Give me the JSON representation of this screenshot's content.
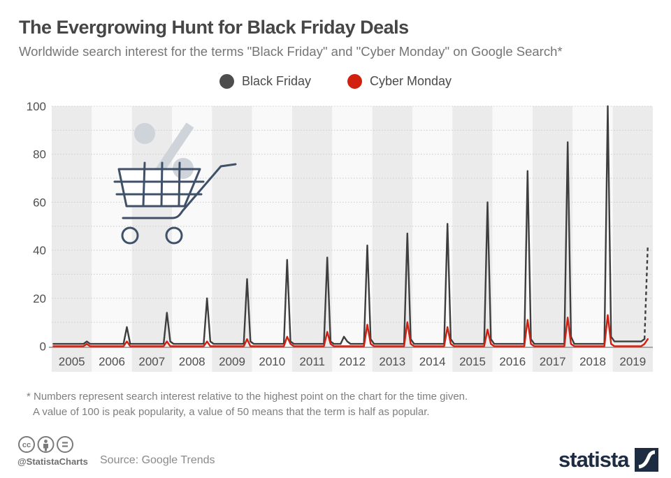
{
  "header": {
    "title": "The Evergrowing Hunt for Black Friday Deals",
    "subtitle": "Worldwide search interest for the terms \"Black Friday\" and \"Cyber Monday\" on Google Search*"
  },
  "legend": {
    "items": [
      {
        "label": "Black Friday",
        "color": "#4d4d4d"
      },
      {
        "label": "Cyber Monday",
        "color": "#d2200f"
      }
    ]
  },
  "chart_data": {
    "type": "line",
    "years": [
      "2005",
      "2006",
      "2007",
      "2008",
      "2009",
      "2010",
      "2011",
      "2012",
      "2013",
      "2014",
      "2015",
      "2016",
      "2017",
      "2018",
      "2019"
    ],
    "ylim": [
      0,
      100
    ],
    "yticks": [
      0,
      20,
      40,
      60,
      80,
      100
    ],
    "grid_step": 10,
    "band_colors": [
      "#ebebeb",
      "#f9f9f9"
    ],
    "grid_color": "#c9c9c9",
    "axis_color": "#a6a6a6",
    "series": [
      {
        "name": "Black Friday",
        "color": "#3e3e3e",
        "dashed_tail_points": 2,
        "monthly_by_year": [
          [
            1,
            1,
            1,
            1,
            1,
            1,
            1,
            1,
            1,
            1,
            2,
            1
          ],
          [
            1,
            1,
            1,
            1,
            1,
            1,
            1,
            1,
            1,
            1,
            8,
            1
          ],
          [
            1,
            1,
            1,
            1,
            1,
            1,
            1,
            1,
            1,
            1,
            14,
            2
          ],
          [
            1,
            1,
            1,
            1,
            1,
            1,
            1,
            1,
            1,
            1,
            20,
            2
          ],
          [
            1,
            1,
            1,
            1,
            1,
            1,
            1,
            1,
            1,
            1,
            28,
            2
          ],
          [
            1,
            1,
            1,
            1,
            1,
            1,
            1,
            1,
            1,
            1,
            36,
            2
          ],
          [
            1,
            1,
            1,
            1,
            1,
            1,
            1,
            1,
            1,
            1,
            37,
            2
          ],
          [
            1,
            1,
            1,
            4,
            2,
            1,
            1,
            1,
            1,
            1,
            42,
            3
          ],
          [
            1,
            1,
            1,
            1,
            1,
            1,
            1,
            1,
            1,
            1,
            47,
            3
          ],
          [
            1,
            1,
            1,
            1,
            1,
            1,
            1,
            1,
            1,
            1,
            51,
            3
          ],
          [
            1,
            1,
            1,
            1,
            1,
            1,
            1,
            1,
            1,
            1,
            60,
            3
          ],
          [
            1,
            1,
            1,
            1,
            1,
            1,
            1,
            1,
            1,
            1,
            73,
            3
          ],
          [
            1,
            1,
            1,
            1,
            1,
            1,
            1,
            1,
            1,
            1,
            85,
            4
          ],
          [
            1,
            1,
            1,
            1,
            1,
            1,
            1,
            1,
            1,
            1,
            100,
            4
          ],
          [
            2,
            2,
            2,
            2,
            2,
            2,
            2,
            2,
            2,
            3,
            42
          ]
        ]
      },
      {
        "name": "Cyber Monday",
        "color": "#cf2011",
        "dashed_tail_points": 0,
        "monthly_by_year": [
          [
            0,
            0,
            0,
            0,
            0,
            0,
            0,
            0,
            0,
            0,
            1,
            0
          ],
          [
            0,
            0,
            0,
            0,
            0,
            0,
            0,
            0,
            0,
            0,
            2,
            0
          ],
          [
            0,
            0,
            0,
            0,
            0,
            0,
            0,
            0,
            0,
            0,
            2,
            0
          ],
          [
            0,
            0,
            0,
            0,
            0,
            0,
            0,
            0,
            0,
            0,
            2,
            0
          ],
          [
            0,
            0,
            0,
            0,
            0,
            0,
            0,
            0,
            0,
            0,
            3,
            0
          ],
          [
            0,
            0,
            0,
            0,
            0,
            0,
            0,
            0,
            0,
            0,
            4,
            1
          ],
          [
            0,
            0,
            0,
            0,
            0,
            0,
            0,
            0,
            0,
            0,
            6,
            1
          ],
          [
            0,
            0,
            0,
            0,
            0,
            0,
            0,
            0,
            0,
            0,
            9,
            1
          ],
          [
            0,
            0,
            0,
            0,
            0,
            0,
            0,
            0,
            0,
            0,
            10,
            1
          ],
          [
            0,
            0,
            0,
            0,
            0,
            0,
            0,
            0,
            0,
            0,
            8,
            1
          ],
          [
            0,
            0,
            0,
            0,
            0,
            0,
            0,
            0,
            0,
            0,
            7,
            1
          ],
          [
            0,
            0,
            0,
            0,
            0,
            0,
            0,
            0,
            0,
            0,
            11,
            1
          ],
          [
            0,
            0,
            0,
            0,
            0,
            0,
            0,
            0,
            0,
            0,
            12,
            1
          ],
          [
            0,
            0,
            0,
            0,
            0,
            0,
            0,
            0,
            0,
            0,
            13,
            1
          ],
          [
            0,
            0,
            0,
            0,
            0,
            0,
            0,
            0,
            0,
            1,
            3
          ]
        ]
      }
    ],
    "annual_november_peaks": {
      "black_friday": [
        2,
        8,
        14,
        20,
        28,
        36,
        37,
        42,
        47,
        51,
        60,
        73,
        85,
        100,
        42
      ],
      "cyber_monday": [
        1,
        2,
        2,
        2,
        3,
        4,
        6,
        9,
        10,
        8,
        7,
        11,
        12,
        13,
        3
      ]
    }
  },
  "footnote": {
    "line1": "* Numbers represent search interest relative to the highest point on the chart for the time given.",
    "line2": "A value of 100 is peak popularity, a value of 50 means that the term is half as popular."
  },
  "footer": {
    "handle": "@StatistaCharts",
    "source": "Source: Google Trends",
    "brand": "statista"
  }
}
